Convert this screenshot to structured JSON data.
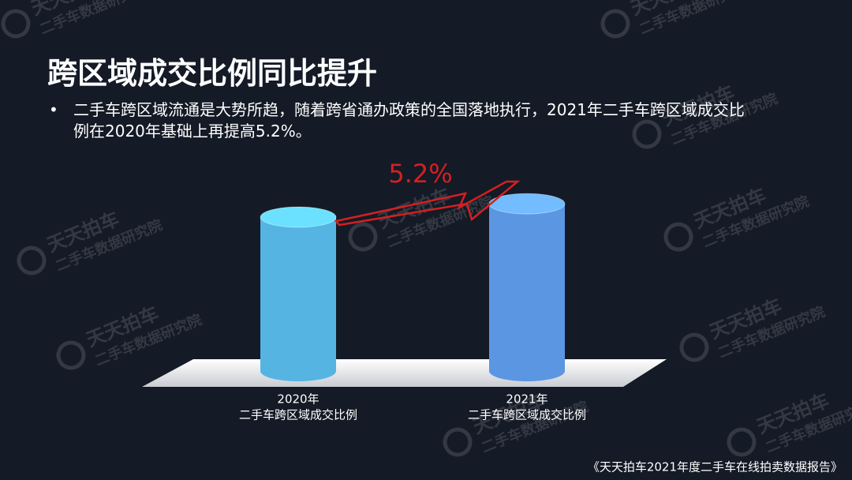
{
  "title": "跨区域成交比例同比提升",
  "bullet": "二手车跨区域流通是大势所趋，随着跨省通办政策的全国落地执行，2021年二手车跨区域成交比例在2020年基础上再提高5.2%。",
  "footer": "《天天拍车2021年度二手车在线拍卖数据报告》",
  "watermark": {
    "brand": "天天拍车",
    "sub": "二手车数据研究院"
  },
  "chart_data": {
    "type": "bar",
    "categories": [
      "2020年",
      "2021年"
    ],
    "category_captions": [
      "二手车跨区域成交比例",
      "二手车跨区域成交比例"
    ],
    "series": [
      {
        "name": "二手车跨区域成交比例",
        "colors": [
          "#56b4e3",
          "#5b96e2"
        ],
        "values": [
          60,
          65.2
        ]
      }
    ],
    "ylim": [
      0,
      70
    ],
    "annotation": "5.2%"
  }
}
